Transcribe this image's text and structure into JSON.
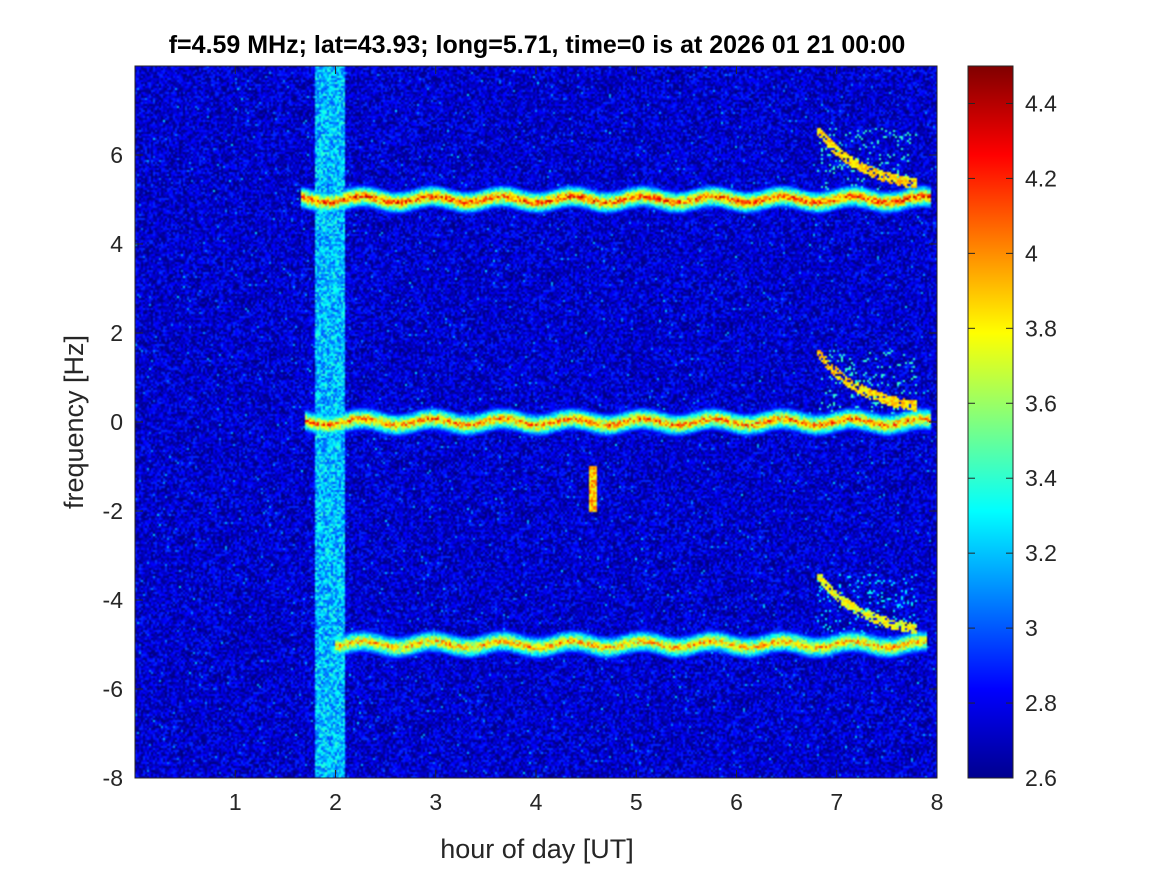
{
  "chart_data": {
    "type": "heatmap",
    "title": "f=4.59 MHz;  lat=43.93; long=5.71, time=0 is at 2026 01 21 00:00",
    "xlabel": "hour of day [UT]",
    "ylabel": "frequency [Hz]",
    "xlim": [
      0,
      8
    ],
    "ylim": [
      -8,
      8
    ],
    "x_ticks": [
      1,
      2,
      3,
      4,
      5,
      6,
      7,
      8
    ],
    "x_tick_labels": [
      "1",
      "2",
      "3",
      "4",
      "5",
      "6",
      "7",
      "8"
    ],
    "y_ticks": [
      6,
      4,
      2,
      0,
      -2,
      -4,
      -6,
      -8
    ],
    "y_tick_labels": [
      "6",
      "4",
      "2",
      "0",
      "-2",
      "-4",
      "-6",
      "-8"
    ],
    "colorbar": {
      "colormap": "jet",
      "clim": [
        2.6,
        4.5
      ],
      "ticks": [
        4.4,
        4.2,
        4.0,
        3.8,
        3.6,
        3.4,
        3.2,
        3.0,
        2.8,
        2.6
      ],
      "tick_labels": [
        "4.4",
        "4.2",
        "4",
        "3.8",
        "3.6",
        "3.4",
        "3.2",
        "3",
        "2.8",
        "2.6"
      ]
    },
    "background_level": 2.75,
    "features": [
      {
        "kind": "band",
        "x_start": 1.65,
        "x_end": 7.95,
        "freq_center": 5.0,
        "level": 4.2
      },
      {
        "kind": "band",
        "x_start": 1.7,
        "x_end": 7.95,
        "freq_center": 0.0,
        "level": 4.1
      },
      {
        "kind": "band",
        "x_start": 2.0,
        "x_end": 7.9,
        "freq_center": -5.0,
        "level": 4.0
      },
      {
        "kind": "vertical_stripe",
        "x_start": 1.8,
        "x_end": 2.1,
        "level": 3.3
      },
      {
        "kind": "burst",
        "x_start": 6.8,
        "x_end": 7.8,
        "freq_low": 5.2,
        "freq_high": 6.6,
        "level": 4.0
      },
      {
        "kind": "burst",
        "x_start": 6.8,
        "x_end": 7.8,
        "freq_low": 0.2,
        "freq_high": 1.6,
        "level": 4.0
      },
      {
        "kind": "burst",
        "x_start": 6.8,
        "x_end": 7.8,
        "freq_low": -4.8,
        "freq_high": -3.4,
        "level": 3.9
      },
      {
        "kind": "spike",
        "x_start": 4.53,
        "x_end": 4.6,
        "freq_low": -2.0,
        "freq_high": -1.0,
        "level": 4.1
      }
    ],
    "grid": false,
    "legend": "none"
  }
}
